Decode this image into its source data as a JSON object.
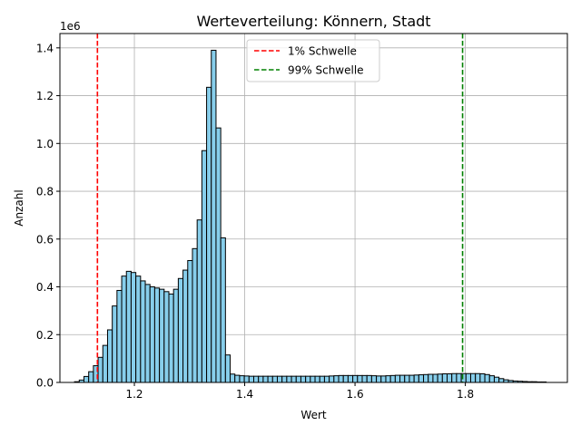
{
  "chart_data": {
    "type": "bar",
    "title": "Werteverteilung: Könnern, Stadt",
    "xlabel": "Wert",
    "ylabel": "Anzahl",
    "y_offset_text": "1e6",
    "xlim": [
      1.065,
      1.985
    ],
    "ylim": [
      0,
      1.46
    ],
    "xticks": [
      1.2,
      1.4,
      1.6,
      1.8
    ],
    "xtick_labels": [
      "1.2",
      "1.4",
      "1.6",
      "1.8"
    ],
    "yticks": [
      0.0,
      0.2,
      0.4,
      0.6,
      0.8,
      1.0,
      1.2,
      1.4
    ],
    "ytick_labels": [
      "0.0",
      "0.2",
      "0.4",
      "0.6",
      "0.8",
      "1.0",
      "1.2",
      "1.4"
    ],
    "grid": true,
    "legend_position": "top-center",
    "bar_color": "#87ceeb",
    "bar_edge_color": "#000000",
    "bin_start": 1.0915,
    "bin_width": 0.00855,
    "values": [
      0.003,
      0.01,
      0.025,
      0.045,
      0.07,
      0.105,
      0.155,
      0.22,
      0.32,
      0.385,
      0.445,
      0.465,
      0.46,
      0.445,
      0.425,
      0.41,
      0.4,
      0.395,
      0.39,
      0.38,
      0.37,
      0.39,
      0.435,
      0.47,
      0.51,
      0.56,
      0.68,
      0.97,
      1.235,
      1.39,
      1.065,
      0.605,
      0.115,
      0.035,
      0.03,
      0.028,
      0.027,
      0.026,
      0.026,
      0.026,
      0.026,
      0.026,
      0.026,
      0.026,
      0.026,
      0.026,
      0.026,
      0.026,
      0.026,
      0.026,
      0.026,
      0.026,
      0.026,
      0.026,
      0.027,
      0.028,
      0.029,
      0.029,
      0.029,
      0.029,
      0.029,
      0.029,
      0.029,
      0.028,
      0.027,
      0.027,
      0.028,
      0.029,
      0.03,
      0.03,
      0.03,
      0.03,
      0.031,
      0.032,
      0.033,
      0.034,
      0.034,
      0.035,
      0.036,
      0.036,
      0.037,
      0.037,
      0.037,
      0.037,
      0.037,
      0.037,
      0.036,
      0.033,
      0.028,
      0.022,
      0.016,
      0.011,
      0.008,
      0.006,
      0.005,
      0.004,
      0.003,
      0.003,
      0.002,
      0.002
    ],
    "thresholds": [
      {
        "name": "1% Schwelle",
        "x": 1.133,
        "color": "#ff0000"
      },
      {
        "name": "99% Schwelle",
        "x": 1.795,
        "color": "#008000"
      }
    ]
  }
}
